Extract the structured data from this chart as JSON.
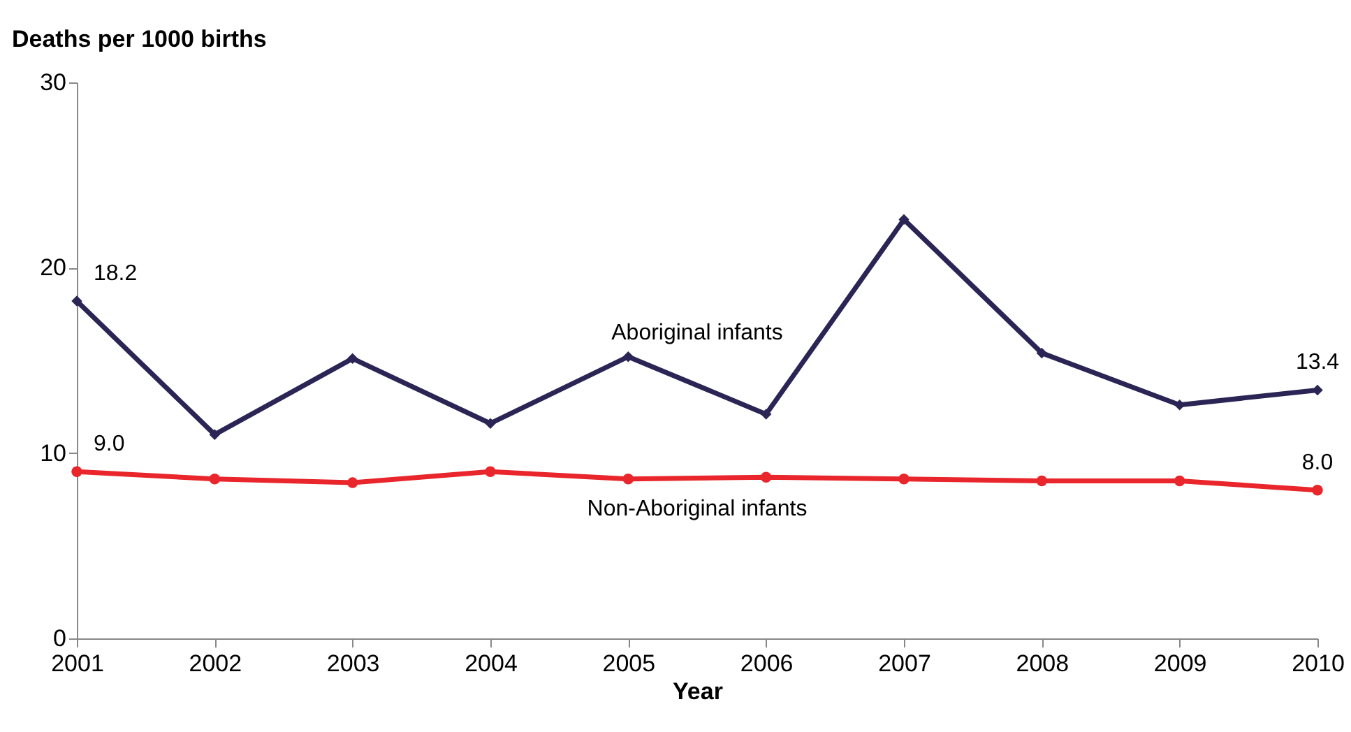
{
  "chart_data": {
    "type": "line",
    "ylabel": "Deaths per 1000 births",
    "xlabel": "Year",
    "x": [
      2001,
      2002,
      2003,
      2004,
      2005,
      2006,
      2007,
      2008,
      2009,
      2010
    ],
    "xlim": [
      2001,
      2010
    ],
    "xticks": [
      2001,
      2002,
      2003,
      2004,
      2005,
      2006,
      2007,
      2008,
      2009,
      2010
    ],
    "ylim": [
      0,
      30
    ],
    "yticks": [
      0,
      10,
      20,
      30
    ],
    "grid": false,
    "line_style": "solid",
    "series": [
      {
        "name": "Aboriginal infants",
        "color": "#2b2555",
        "marker": "diamond",
        "values": [
          18.2,
          11.0,
          15.1,
          11.6,
          15.2,
          12.1,
          22.6,
          15.4,
          12.6,
          13.4
        ],
        "value_labels": [
          "18.2",
          null,
          null,
          null,
          null,
          null,
          null,
          null,
          null,
          "13.4"
        ]
      },
      {
        "name": "Non-Aboriginal infants",
        "color": "#e8262b",
        "marker": "circle",
        "values": [
          9.0,
          8.6,
          8.4,
          9.0,
          8.6,
          8.7,
          8.6,
          8.5,
          8.5,
          8.0
        ],
        "value_labels": [
          "9.0",
          null,
          null,
          null,
          null,
          null,
          null,
          null,
          null,
          "8.0"
        ]
      }
    ]
  }
}
